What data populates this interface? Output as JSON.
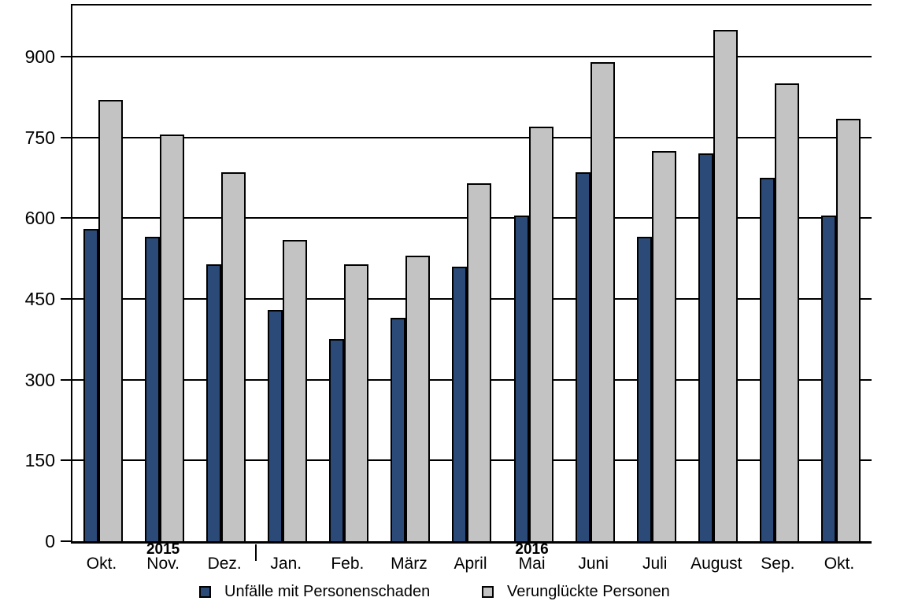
{
  "chart_data": {
    "type": "bar",
    "title": "",
    "xlabel": "",
    "ylabel": "",
    "categories": [
      "Okt.",
      "Nov.",
      "Dez.",
      "Jan.",
      "Feb.",
      "März",
      "April",
      "Mai",
      "Juni",
      "Juli",
      "August",
      "Sep.",
      "Okt."
    ],
    "series": [
      {
        "name": "Unfälle mit Personenschaden",
        "color": "#2B4A77",
        "values": [
          580,
          565,
          515,
          430,
          375,
          415,
          510,
          605,
          685,
          565,
          720,
          675,
          605
        ]
      },
      {
        "name": "Verunglückte Personen",
        "color": "#C3C3C3",
        "values": [
          820,
          755,
          685,
          560,
          515,
          530,
          665,
          770,
          890,
          725,
          950,
          850,
          785
        ]
      }
    ],
    "y_ticks": [
      0,
      150,
      300,
      450,
      600,
      750,
      900
    ],
    "ylim": [
      0,
      995
    ],
    "grid": "horizontal",
    "legend_position": "bottom",
    "year_labels": [
      {
        "text": "2015",
        "month_index": 1
      },
      {
        "text": "2016",
        "month_index": 7
      }
    ],
    "year_separator_after_month_index": 2
  }
}
